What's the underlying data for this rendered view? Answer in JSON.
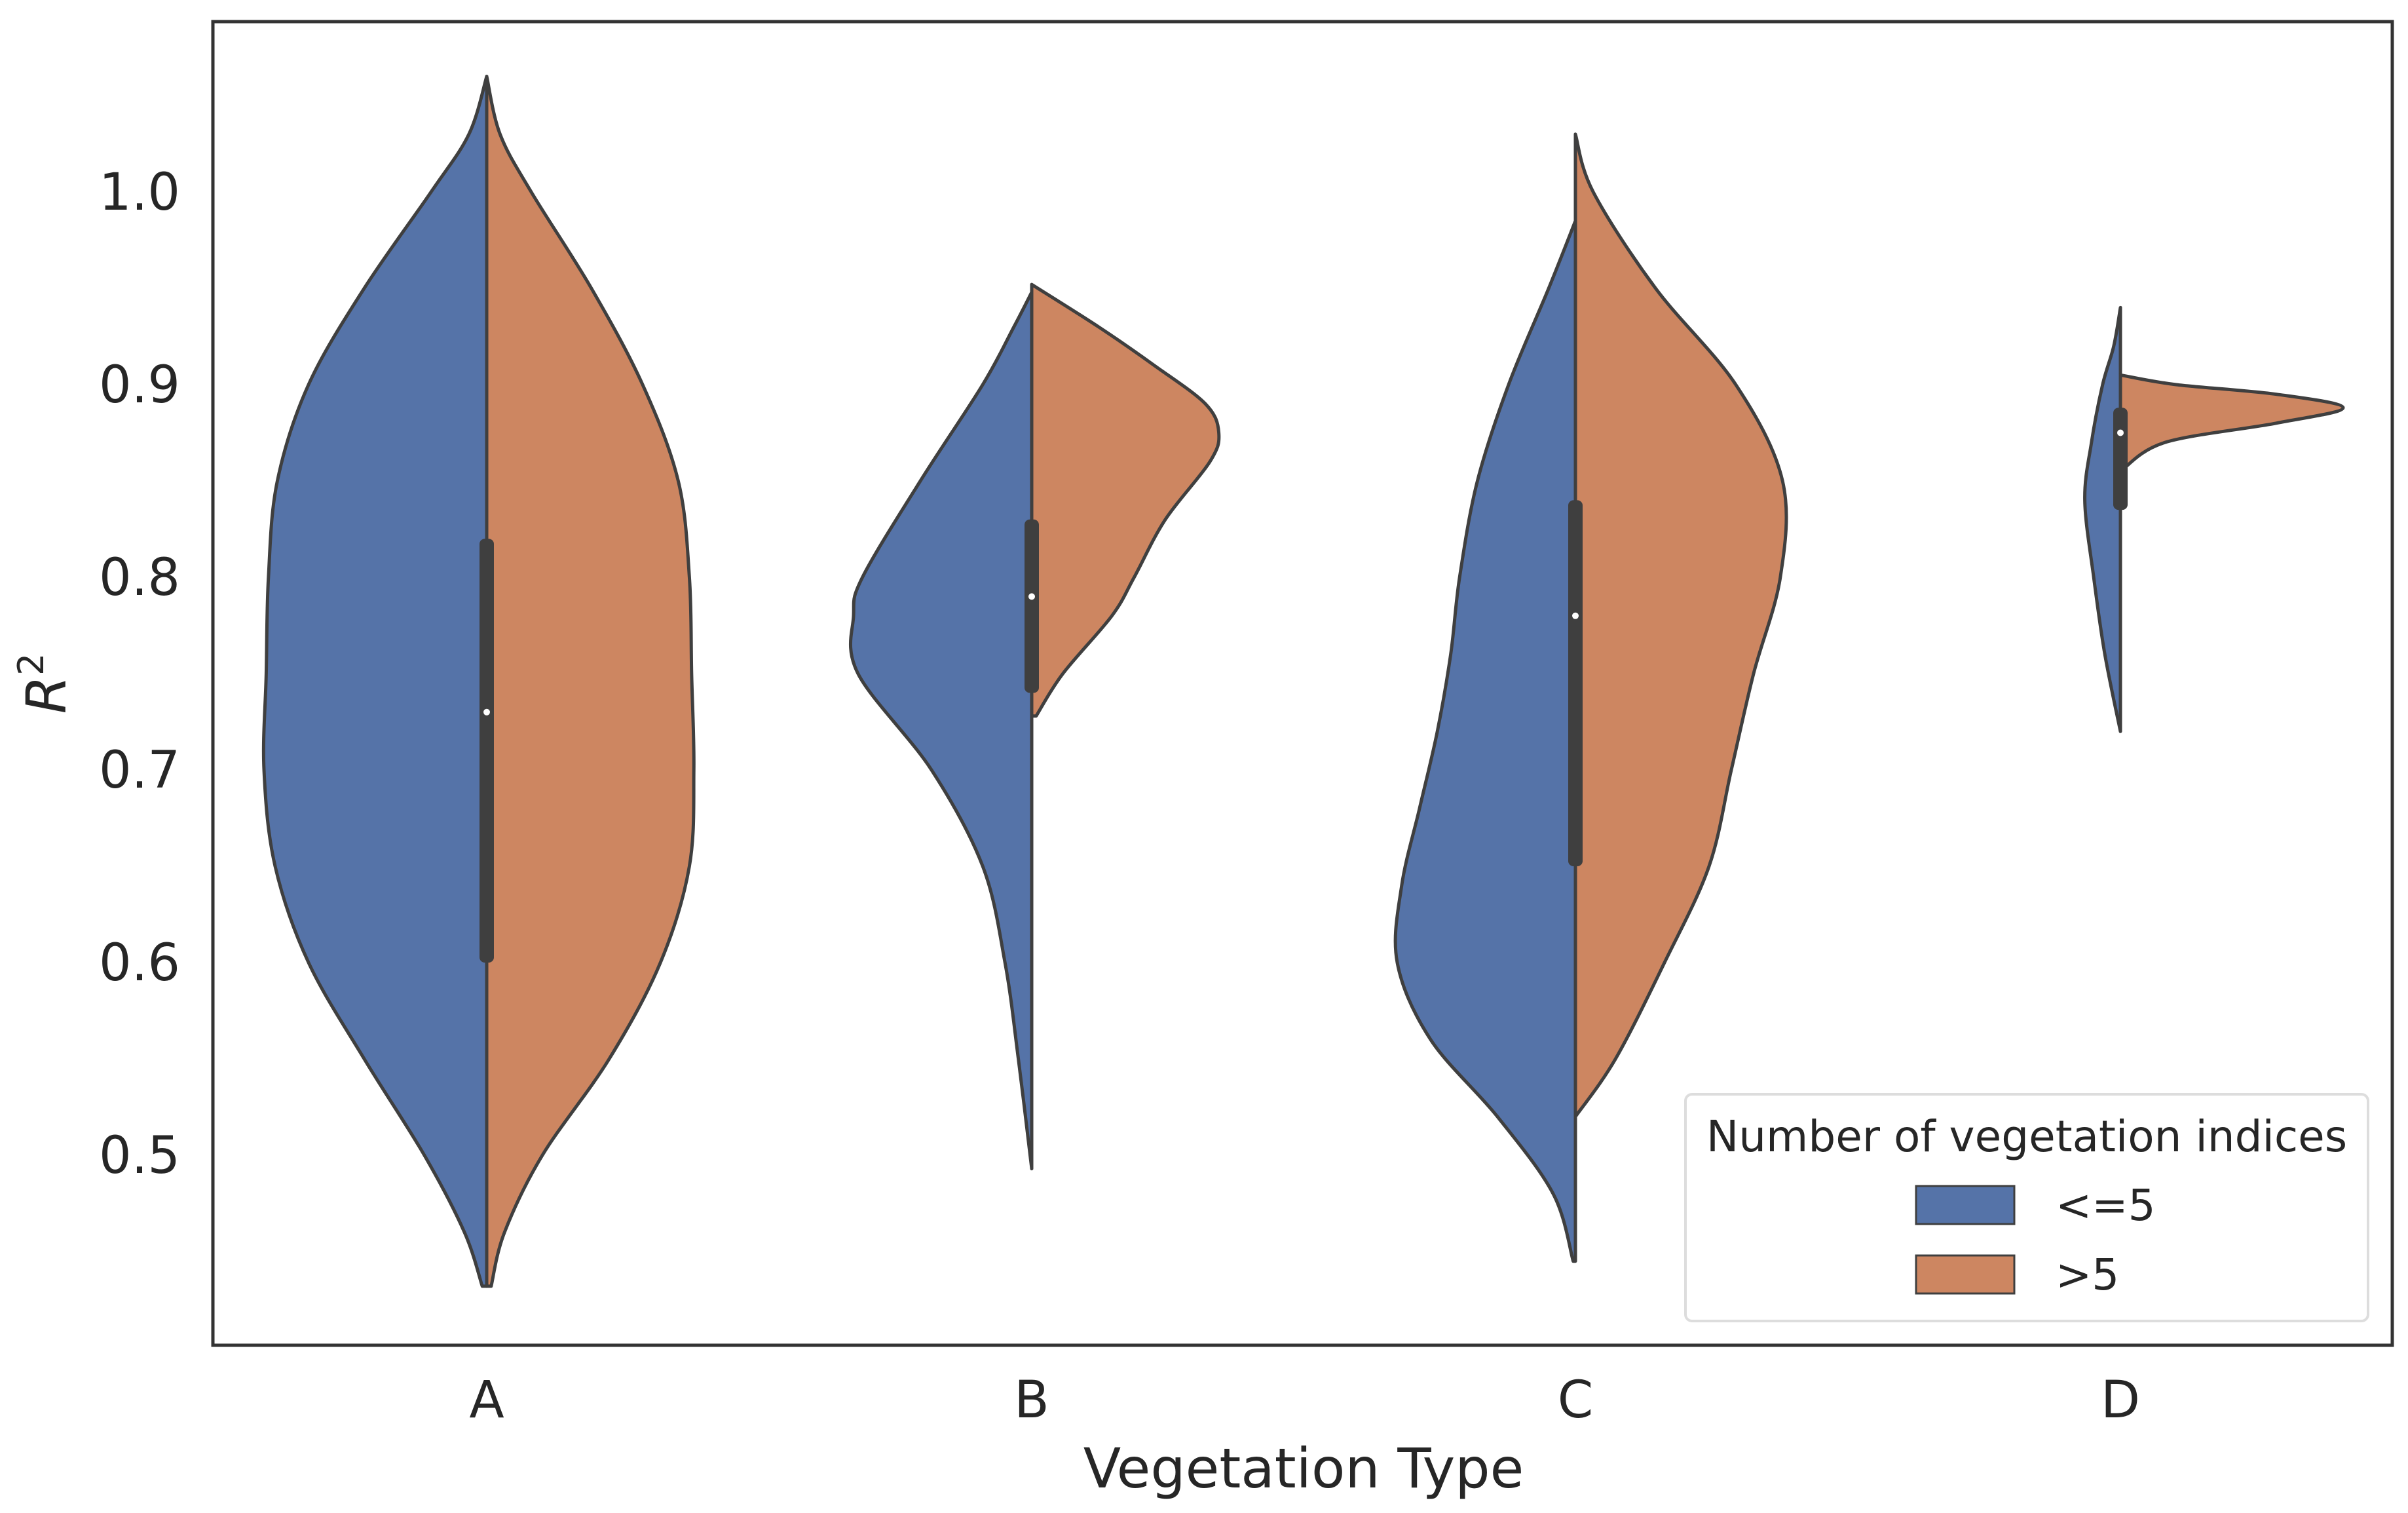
{
  "chart_data": {
    "type": "violin",
    "split": true,
    "title": "",
    "xlabel": "Vegetation Type",
    "ylabel": "R",
    "ylabel_superscript": "2",
    "ylim": [
      0.415,
      1.105
    ],
    "yticks": [
      "0.5",
      "0.6",
      "0.7",
      "0.8",
      "0.9",
      "1.0"
    ],
    "categories": [
      "A",
      "B",
      "C",
      "D"
    ],
    "grid": false,
    "legend": {
      "title": "Number of vegetation indices",
      "position": "lower-right",
      "entries": [
        {
          "label": "<=5",
          "color": "#5573a8"
        },
        {
          "label": ">5",
          "color": "#cd8661"
        }
      ]
    },
    "colors": {
      "left": "#5573a8",
      "right": "#cd8661",
      "outline": "#3f3f3f",
      "box": "#3f3f3f",
      "median": "#ffffff"
    },
    "series": [
      {
        "name": "<=5",
        "side": "left",
        "violins": [
          {
            "category": "A",
            "min": 0.432,
            "max": 1.06,
            "profile": [
              [
                0.432,
                0.02
              ],
              [
                0.46,
                0.1
              ],
              [
                0.5,
                0.28
              ],
              [
                0.55,
                0.55
              ],
              [
                0.6,
                0.8
              ],
              [
                0.65,
                0.95
              ],
              [
                0.7,
                1.0
              ],
              [
                0.75,
                0.99
              ],
              [
                0.8,
                0.98
              ],
              [
                0.85,
                0.94
              ],
              [
                0.9,
                0.8
              ],
              [
                0.95,
                0.55
              ],
              [
                1.0,
                0.25
              ],
              [
                1.03,
                0.08
              ],
              [
                1.06,
                0.0
              ]
            ]
          },
          {
            "category": "B",
            "min": 0.493,
            "max": 0.948,
            "profile": [
              [
                0.493,
                0.0
              ],
              [
                0.55,
                0.06
              ],
              [
                0.6,
                0.12
              ],
              [
                0.65,
                0.22
              ],
              [
                0.7,
                0.45
              ],
              [
                0.75,
                0.78
              ],
              [
                0.78,
                0.8
              ],
              [
                0.8,
                0.76
              ],
              [
                0.85,
                0.5
              ],
              [
                0.9,
                0.22
              ],
              [
                0.93,
                0.08
              ],
              [
                0.948,
                0.0
              ]
            ]
          },
          {
            "category": "C",
            "min": 0.445,
            "max": 0.985,
            "profile": [
              [
                0.445,
                0.01
              ],
              [
                0.48,
                0.1
              ],
              [
                0.52,
                0.35
              ],
              [
                0.56,
                0.65
              ],
              [
                0.6,
                0.8
              ],
              [
                0.64,
                0.78
              ],
              [
                0.68,
                0.7
              ],
              [
                0.72,
                0.62
              ],
              [
                0.76,
                0.56
              ],
              [
                0.8,
                0.52
              ],
              [
                0.85,
                0.44
              ],
              [
                0.9,
                0.3
              ],
              [
                0.95,
                0.12
              ],
              [
                0.985,
                0.0
              ]
            ]
          },
          {
            "category": "D",
            "min": 0.72,
            "max": 0.94,
            "profile": [
              [
                0.72,
                0.0
              ],
              [
                0.76,
                0.07
              ],
              [
                0.8,
                0.12
              ],
              [
                0.84,
                0.16
              ],
              [
                0.87,
                0.13
              ],
              [
                0.9,
                0.08
              ],
              [
                0.92,
                0.03
              ],
              [
                0.94,
                0.0
              ]
            ]
          }
        ]
      },
      {
        "name": ">5",
        "side": "right",
        "violins": [
          {
            "category": "A",
            "min": 0.432,
            "max": 1.06,
            "profile": [
              [
                0.432,
                0.02
              ],
              [
                0.46,
                0.08
              ],
              [
                0.5,
                0.25
              ],
              [
                0.55,
                0.55
              ],
              [
                0.6,
                0.78
              ],
              [
                0.65,
                0.91
              ],
              [
                0.7,
                0.93
              ],
              [
                0.75,
                0.92
              ],
              [
                0.8,
                0.91
              ],
              [
                0.85,
                0.86
              ],
              [
                0.9,
                0.7
              ],
              [
                0.95,
                0.47
              ],
              [
                1.0,
                0.2
              ],
              [
                1.03,
                0.06
              ],
              [
                1.06,
                0.0
              ]
            ]
          },
          {
            "category": "B",
            "min": 0.728,
            "max": 0.952,
            "profile": [
              [
                0.728,
                0.02
              ],
              [
                0.75,
                0.14
              ],
              [
                0.78,
                0.36
              ],
              [
                0.8,
                0.46
              ],
              [
                0.83,
                0.6
              ],
              [
                0.86,
                0.8
              ],
              [
                0.875,
                0.84
              ],
              [
                0.89,
                0.78
              ],
              [
                0.91,
                0.55
              ],
              [
                0.93,
                0.3
              ],
              [
                0.952,
                0.0
              ]
            ]
          },
          {
            "category": "C",
            "min": 0.52,
            "max": 1.03,
            "profile": [
              [
                0.52,
                0.0
              ],
              [
                0.55,
                0.18
              ],
              [
                0.6,
                0.4
              ],
              [
                0.65,
                0.6
              ],
              [
                0.7,
                0.7
              ],
              [
                0.75,
                0.8
              ],
              [
                0.8,
                0.92
              ],
              [
                0.85,
                0.93
              ],
              [
                0.9,
                0.72
              ],
              [
                0.95,
                0.36
              ],
              [
                1.0,
                0.08
              ],
              [
                1.03,
                0.0
              ]
            ]
          },
          {
            "category": "D",
            "min": 0.855,
            "max": 0.905,
            "profile": [
              [
                0.855,
                0.0
              ],
              [
                0.87,
                0.2
              ],
              [
                0.88,
                0.7
              ],
              [
                0.888,
                1.0
              ],
              [
                0.895,
                0.7
              ],
              [
                0.9,
                0.25
              ],
              [
                0.905,
                0.0
              ]
            ]
          }
        ]
      }
    ],
    "box": [
      {
        "category": "A",
        "q1": 0.6,
        "median": 0.73,
        "q3": 0.82
      },
      {
        "category": "B",
        "q1": 0.74,
        "median": 0.79,
        "q3": 0.83
      },
      {
        "category": "C",
        "q1": 0.65,
        "median": 0.78,
        "q3": 0.84
      },
      {
        "category": "D",
        "q1": 0.835,
        "median": 0.875,
        "q3": 0.888
      }
    ]
  }
}
